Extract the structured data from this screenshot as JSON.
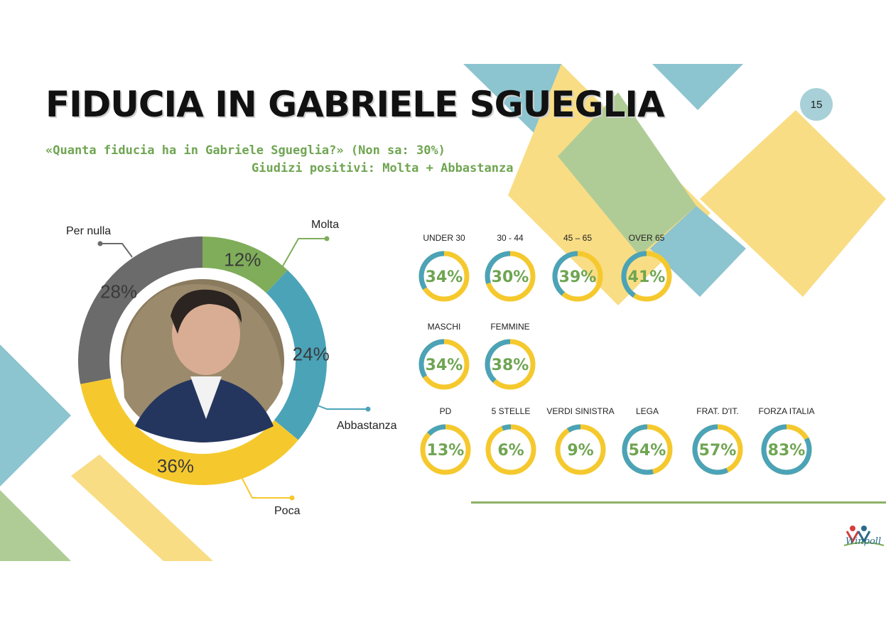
{
  "header": {
    "title": "FIDUCIA IN GABRIELE SGUEGLIA",
    "page_number": "15",
    "subtitle_line1": "«Quanta fiducia ha in Gabriele Sgueglia?» (Non sa: 30%)",
    "subtitle_line2": "Giudizi positivi: Molta + Abbastanza"
  },
  "logo": {
    "text": "Winpoll"
  },
  "colors": {
    "molta": "#7fad5a",
    "abbastanza": "#4ba3b8",
    "poca": "#f5c92e",
    "per_nulla": "#6b6b6b",
    "positive_arc": "#4ba3b8",
    "negative_arc": "#f5c92e",
    "green_text": "#6fa552"
  },
  "chart_data": [
    {
      "type": "pie",
      "variant": "donut",
      "title": "",
      "categories": [
        "Molta",
        "Abbastanza",
        "Poca",
        "Per nulla"
      ],
      "values": [
        12,
        24,
        36,
        28
      ],
      "value_labels": [
        "12%",
        "24%",
        "36%",
        "28%"
      ]
    },
    {
      "type": "pie",
      "variant": "small-multiples-donut",
      "title": "Giudizi positivi: Molta + Abbastanza",
      "groups": [
        {
          "name": "Età",
          "categories": [
            "UNDER 30",
            "30 - 44",
            "45 – 65",
            "OVER 65"
          ],
          "values": [
            34,
            30,
            39,
            41
          ],
          "value_labels": [
            "34%",
            "30%",
            "39%",
            "41%"
          ]
        },
        {
          "name": "Genere",
          "categories": [
            "MASCHI",
            "FEMMINE"
          ],
          "values": [
            34,
            38
          ],
          "value_labels": [
            "34%",
            "38%"
          ]
        },
        {
          "name": "Partiti",
          "categories": [
            "PD",
            "5 STELLE",
            "VERDI SINISTRA",
            "LEGA",
            "FRAT. D'IT.",
            "FORZA ITALIA"
          ],
          "values": [
            13,
            6,
            9,
            54,
            57,
            83
          ],
          "value_labels": [
            "13%",
            "6%",
            "9%",
            "54%",
            "57%",
            "83%"
          ]
        }
      ]
    }
  ]
}
